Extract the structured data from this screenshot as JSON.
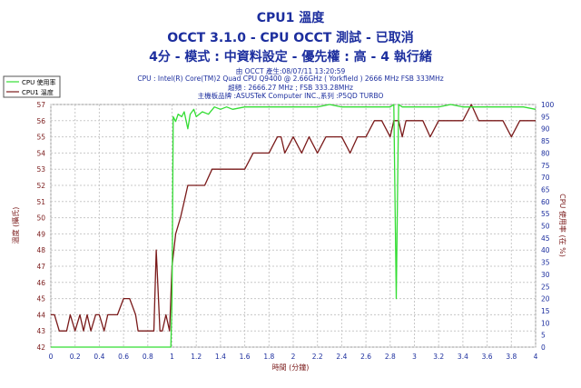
{
  "header": {
    "title": "CPU1 溫度",
    "subtitle": "OCCT 3.1.0 - CPU OCCT 測試 - 已取消",
    "settings": "4分 - 模式 : 中資料設定 - 優先權 : 高 - 4 執行緒",
    "info_lines": [
      "由 OCCT 產生:08/07/11 13:20:59",
      "CPU : Intel(R) Core(TM)2 Quad CPU Q9400 @ 2.66GHz ( Yorkfield ) 2666 MHz FSB 333MHz",
      "超頻 : 2666.27 MHz ; FSB 333.28MHz",
      "主機板品牌 :ASUSTeK Computer INC.,系列 :P5QD TURBO"
    ]
  },
  "legend": [
    {
      "label": "CPU 使用率",
      "color": "#33dd33"
    },
    {
      "label": "CPU1 溫度",
      "color": "#7a1a1a"
    }
  ],
  "chart_data": {
    "type": "line",
    "xlabel": "時間 (分鐘)",
    "ylabel": "溫度 (攝氏)",
    "y2label": "CPU 使用率 (在 %)",
    "xlim": [
      0,
      4
    ],
    "ylim": [
      42,
      57
    ],
    "y2lim": [
      0,
      100
    ],
    "x_ticks": [
      "0",
      "0.2",
      "0.4",
      "0.6",
      "0.8",
      "1",
      "1.2",
      "1.4",
      "1.6",
      "1.8",
      "2",
      "2.2",
      "2.4",
      "2.6",
      "2.8",
      "3",
      "3.2",
      "3.4",
      "3.6",
      "3.8",
      "4"
    ],
    "y_ticks": [
      "42",
      "43",
      "44",
      "45",
      "46",
      "47",
      "48",
      "49",
      "50",
      "51",
      "52",
      "53",
      "54",
      "55",
      "56",
      "57"
    ],
    "y2_ticks": [
      "0",
      "5",
      "10",
      "15",
      "20",
      "25",
      "30",
      "35",
      "40",
      "45",
      "50",
      "55",
      "60",
      "65",
      "70",
      "75",
      "80",
      "85",
      "90",
      "95",
      "100"
    ],
    "grid": true,
    "legend_position": "top-left",
    "series": [
      {
        "name": "CPU1 溫度",
        "axis": "left",
        "color": "#7a1a1a",
        "x": [
          0,
          0.03,
          0.07,
          0.13,
          0.16,
          0.2,
          0.24,
          0.27,
          0.3,
          0.33,
          0.37,
          0.4,
          0.44,
          0.47,
          0.5,
          0.55,
          0.6,
          0.65,
          0.7,
          0.72,
          0.76,
          0.8,
          0.85,
          0.87,
          0.9,
          0.92,
          0.95,
          0.98,
          1.0,
          1.03,
          1.07,
          1.1,
          1.13,
          1.17,
          1.2,
          1.27,
          1.33,
          1.4,
          1.47,
          1.53,
          1.6,
          1.67,
          1.73,
          1.8,
          1.87,
          1.9,
          1.93,
          2.0,
          2.07,
          2.13,
          2.2,
          2.27,
          2.33,
          2.4,
          2.47,
          2.53,
          2.6,
          2.67,
          2.73,
          2.8,
          2.83,
          2.87,
          2.9,
          2.93,
          3.0,
          3.07,
          3.13,
          3.2,
          3.27,
          3.33,
          3.4,
          3.47,
          3.53,
          3.6,
          3.67,
          3.73,
          3.8,
          3.87,
          3.93,
          4.0
        ],
        "y": [
          44,
          44,
          43,
          43,
          44,
          43,
          44,
          43,
          44,
          43,
          44,
          44,
          43,
          44,
          44,
          44,
          45,
          45,
          44,
          43,
          43,
          43,
          43,
          48,
          43,
          43,
          44,
          43,
          47,
          49,
          50,
          51,
          52,
          52,
          52,
          52,
          53,
          53,
          53,
          53,
          53,
          54,
          54,
          54,
          55,
          55,
          54,
          55,
          54,
          55,
          54,
          55,
          55,
          55,
          54,
          55,
          55,
          56,
          56,
          55,
          56,
          56,
          55,
          56,
          56,
          56,
          55,
          56,
          56,
          56,
          56,
          57,
          56,
          56,
          56,
          56,
          55,
          56,
          56,
          56
        ]
      },
      {
        "name": "CPU 使用率",
        "axis": "right",
        "color": "#33dd33",
        "x": [
          0,
          0.5,
          0.8,
          0.97,
          0.99,
          1.0,
          1.01,
          1.03,
          1.05,
          1.08,
          1.1,
          1.13,
          1.15,
          1.18,
          1.2,
          1.25,
          1.3,
          1.35,
          1.4,
          1.45,
          1.5,
          1.6,
          1.7,
          1.8,
          1.9,
          2.0,
          2.1,
          2.2,
          2.3,
          2.4,
          2.5,
          2.6,
          2.7,
          2.8,
          2.83,
          2.85,
          2.87,
          2.9,
          3.0,
          3.1,
          3.2,
          3.3,
          3.4,
          3.5,
          3.6,
          3.7,
          3.8,
          3.9,
          4.0
        ],
        "y": [
          0,
          0,
          0,
          0,
          0,
          20,
          95,
          93,
          96,
          95,
          97,
          90,
          96,
          98,
          95,
          97,
          96,
          99,
          98,
          99,
          98,
          99,
          99,
          99,
          99,
          99,
          99,
          99,
          100,
          99,
          99,
          99,
          99,
          99,
          100,
          20,
          100,
          99,
          99,
          99,
          99,
          100,
          99,
          99,
          99,
          99,
          99,
          99,
          98
        ]
      }
    ]
  }
}
